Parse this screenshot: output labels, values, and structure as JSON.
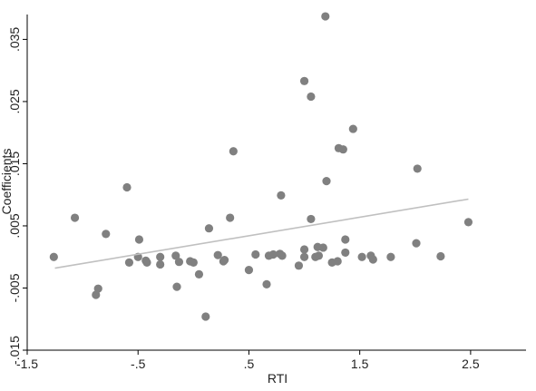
{
  "chart_data": {
    "type": "scatter",
    "title": "",
    "xlabel": "RTI",
    "ylabel": "Coefficients",
    "xlim": [
      -1.5,
      3.0
    ],
    "ylim": [
      -0.015,
      0.039
    ],
    "x_ticks": [
      {
        "value": -1.5,
        "label": "-1.5"
      },
      {
        "value": -0.5,
        "label": "-.5"
      },
      {
        "value": 0.5,
        "label": ".5"
      },
      {
        "value": 1.5,
        "label": "1.5"
      },
      {
        "value": 2.5,
        "label": "2.5"
      }
    ],
    "y_ticks": [
      {
        "value": -0.015,
        "label": "-.015"
      },
      {
        "value": -0.005,
        "label": "-.005"
      },
      {
        "value": 0.005,
        "label": ".005"
      },
      {
        "value": 0.015,
        "label": ".015"
      },
      {
        "value": 0.025,
        "label": ".025"
      },
      {
        "value": 0.035,
        "label": ".035"
      }
    ],
    "grid": false,
    "colors": {
      "points": "#808080",
      "fit_line": "#c0c0c0",
      "axis": "#000000"
    },
    "points": [
      {
        "x": -1.26,
        "y": 0.0
      },
      {
        "x": -1.07,
        "y": 0.0063
      },
      {
        "x": -0.88,
        "y": -0.0061
      },
      {
        "x": -0.86,
        "y": -0.0051
      },
      {
        "x": -0.79,
        "y": 0.0037
      },
      {
        "x": -0.6,
        "y": 0.0112
      },
      {
        "x": -0.58,
        "y": -0.0009
      },
      {
        "x": -0.49,
        "y": 0.0028
      },
      {
        "x": -0.5,
        "y": 0.0
      },
      {
        "x": -0.43,
        "y": -0.0006
      },
      {
        "x": -0.42,
        "y": -0.0009
      },
      {
        "x": -0.3,
        "y": 0.0
      },
      {
        "x": -0.3,
        "y": -0.0012
      },
      {
        "x": -0.16,
        "y": 0.0002
      },
      {
        "x": -0.15,
        "y": -0.0048
      },
      {
        "x": -0.13,
        "y": -0.0008
      },
      {
        "x": -0.03,
        "y": -0.0007
      },
      {
        "x": 0.0,
        "y": -0.0009
      },
      {
        "x": 0.05,
        "y": -0.0028
      },
      {
        "x": 0.11,
        "y": -0.0096
      },
      {
        "x": 0.14,
        "y": 0.0046
      },
      {
        "x": 0.22,
        "y": 0.0003
      },
      {
        "x": 0.27,
        "y": -0.0007
      },
      {
        "x": 0.28,
        "y": -0.0005
      },
      {
        "x": 0.33,
        "y": 0.0063
      },
      {
        "x": 0.36,
        "y": 0.017
      },
      {
        "x": 0.5,
        "y": -0.0021
      },
      {
        "x": 0.56,
        "y": 0.0004
      },
      {
        "x": 0.66,
        "y": -0.0044
      },
      {
        "x": 0.68,
        "y": 0.0002
      },
      {
        "x": 0.72,
        "y": 0.0004
      },
      {
        "x": 0.78,
        "y": 0.0005
      },
      {
        "x": 0.79,
        "y": 0.0099
      },
      {
        "x": 0.8,
        "y": 0.0002
      },
      {
        "x": 0.95,
        "y": -0.0014
      },
      {
        "x": 1.0,
        "y": 0.0
      },
      {
        "x": 1.0,
        "y": 0.0012
      },
      {
        "x": 1.0,
        "y": 0.0283
      },
      {
        "x": 1.06,
        "y": 0.0061
      },
      {
        "x": 1.06,
        "y": 0.0258
      },
      {
        "x": 1.1,
        "y": 0.0
      },
      {
        "x": 1.12,
        "y": 0.0016
      },
      {
        "x": 1.13,
        "y": 0.0002
      },
      {
        "x": 1.17,
        "y": 0.0015
      },
      {
        "x": 1.19,
        "y": 0.0387
      },
      {
        "x": 1.2,
        "y": 0.0122
      },
      {
        "x": 1.25,
        "y": -0.0009
      },
      {
        "x": 1.3,
        "y": -0.0007
      },
      {
        "x": 1.31,
        "y": 0.0175
      },
      {
        "x": 1.35,
        "y": 0.0173
      },
      {
        "x": 1.37,
        "y": 0.0028
      },
      {
        "x": 1.37,
        "y": 0.0007
      },
      {
        "x": 1.44,
        "y": 0.0206
      },
      {
        "x": 1.52,
        "y": 0.0
      },
      {
        "x": 1.6,
        "y": 0.0002
      },
      {
        "x": 1.62,
        "y": -0.0004
      },
      {
        "x": 1.78,
        "y": 0.0
      },
      {
        "x": 2.01,
        "y": 0.0022
      },
      {
        "x": 2.02,
        "y": 0.0142
      },
      {
        "x": 2.23,
        "y": 0.0001
      },
      {
        "x": 2.48,
        "y": 0.0056
      }
    ],
    "fit_line": {
      "x": [
        -1.25,
        2.48
      ],
      "y": [
        -0.0018,
        0.0093
      ]
    }
  }
}
